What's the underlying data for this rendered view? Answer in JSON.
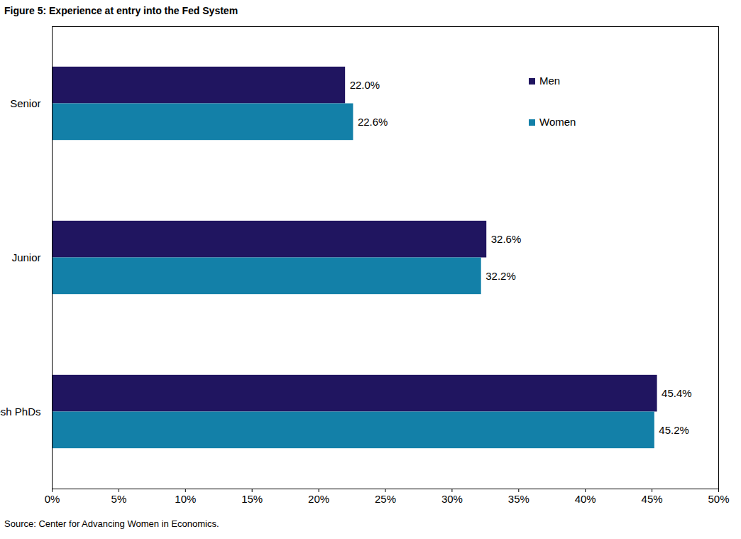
{
  "chart_data": {
    "type": "bar",
    "orientation": "horizontal",
    "title": "Figure 5: Experience at entry into the Fed System",
    "source": "Source: Center for Advancing Women in Economics.",
    "categories": [
      "Senior",
      "Junior",
      "Fresh PhDs"
    ],
    "series": [
      {
        "name": "Men",
        "color": "#201560",
        "values": [
          22.0,
          32.6,
          45.4
        ],
        "value_labels": [
          "22.0%",
          "32.6%",
          "45.4%"
        ]
      },
      {
        "name": "Women",
        "color": "#1380a8",
        "values": [
          22.6,
          32.2,
          45.2
        ],
        "value_labels": [
          "22.6%",
          "32.2%",
          "45.2%"
        ]
      }
    ],
    "xlim": [
      0,
      50
    ],
    "xticks": [
      {
        "value": 0,
        "label": "0%"
      },
      {
        "value": 5,
        "label": "5%"
      },
      {
        "value": 10,
        "label": "10%"
      },
      {
        "value": 15,
        "label": "15%"
      },
      {
        "value": 20,
        "label": "20%"
      },
      {
        "value": 25,
        "label": "25%"
      },
      {
        "value": 30,
        "label": "30%"
      },
      {
        "value": 35,
        "label": "35%"
      },
      {
        "value": 40,
        "label": "40%"
      },
      {
        "value": 45,
        "label": "45%"
      },
      {
        "value": 50,
        "label": "50%"
      }
    ],
    "data_labels": true,
    "legend": "top-right",
    "grid": false
  }
}
